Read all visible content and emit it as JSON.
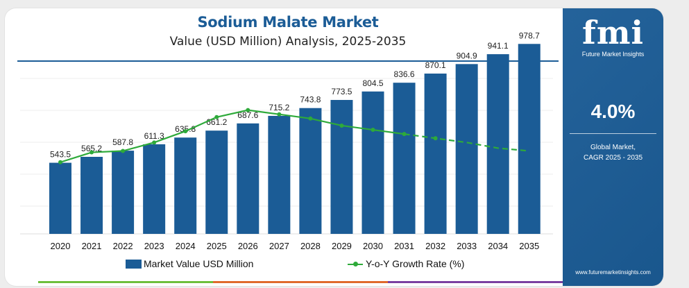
{
  "header": {
    "title": "Sodium Malate Market",
    "subtitle": "Value (USD Million) Analysis, 2025-2035"
  },
  "colors": {
    "bar": "#1b5c96",
    "line": "#2eaa3a",
    "panel": "#1b5c96",
    "strip": [
      "#6dbf3b",
      "#e06a2c",
      "#7a3fa0"
    ]
  },
  "chart_data": {
    "type": "bar",
    "title": "Sodium Malate Market",
    "subtitle": "Value (USD Million) Analysis, 2025-2035",
    "categories": [
      "2020",
      "2021",
      "2022",
      "2023",
      "2024",
      "2025",
      "2026",
      "2027",
      "2028",
      "2029",
      "2030",
      "2031",
      "2032",
      "2033",
      "2034",
      "2035"
    ],
    "series": [
      {
        "name": "Market Value USD Million",
        "type": "bar",
        "values": [
          543.5,
          565.2,
          587.8,
          611.3,
          635.8,
          661.2,
          687.6,
          715.2,
          743.8,
          773.5,
          804.5,
          836.6,
          870.1,
          904.9,
          941.1,
          978.7
        ],
        "labels": [
          "543.5",
          "565.2",
          "587.8",
          "611.3",
          "635.8",
          "661.2",
          "687.6",
          "715.2",
          "743.8",
          "773.5",
          "804.5",
          "836.6",
          "870.1",
          "904.9",
          "941.1",
          "978.7"
        ]
      },
      {
        "name": "Y-o-Y Growth Rate (%)",
        "type": "line",
        "values": [
          3.2,
          3.9,
          4.0,
          4.6,
          5.4,
          6.4,
          6.9,
          6.6,
          6.3,
          5.8,
          5.5,
          5.2,
          4.9,
          4.6,
          4.2,
          4.0
        ]
      }
    ],
    "grid": true,
    "legend": "bottom"
  },
  "legend": {
    "bar_label": "Market Value USD Million",
    "line_label": "Y-o-Y Growth Rate (%)"
  },
  "panel": {
    "logo_text": "fmi",
    "logo_tagline": "Future Market Insights",
    "cagr_value": "4.0%",
    "cagr_label_line1": "Global Market,",
    "cagr_label_line2": "CAGR 2025 - 2035",
    "website": "www.futuremarketinsights.com"
  }
}
